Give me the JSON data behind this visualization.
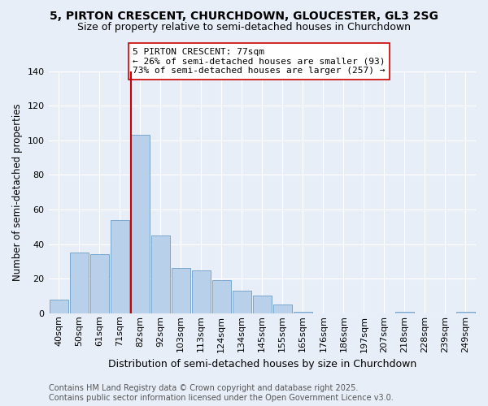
{
  "title1": "5, PIRTON CRESCENT, CHURCHDOWN, GLOUCESTER, GL3 2SG",
  "title2": "Size of property relative to semi-detached houses in Churchdown",
  "xlabel": "Distribution of semi-detached houses by size in Churchdown",
  "ylabel": "Number of semi-detached properties",
  "bar_labels": [
    "40sqm",
    "50sqm",
    "61sqm",
    "71sqm",
    "82sqm",
    "92sqm",
    "103sqm",
    "113sqm",
    "124sqm",
    "134sqm",
    "145sqm",
    "155sqm",
    "165sqm",
    "176sqm",
    "186sqm",
    "197sqm",
    "207sqm",
    "218sqm",
    "228sqm",
    "239sqm",
    "249sqm"
  ],
  "bar_values": [
    8,
    35,
    34,
    54,
    103,
    45,
    26,
    25,
    19,
    13,
    10,
    5,
    1,
    0,
    0,
    0,
    0,
    1,
    0,
    0,
    1
  ],
  "bar_color": "#b8d0ea",
  "bar_edge_color": "#6e9ec7",
  "background_color": "#e8eef8",
  "grid_color": "#ffffff",
  "vline_x_index": 4,
  "vline_color": "#cc0000",
  "annotation_title": "5 PIRTON CRESCENT: 77sqm",
  "annotation_line1": "← 26% of semi-detached houses are smaller (93)",
  "annotation_line2": "73% of semi-detached houses are larger (257) →",
  "annotation_box_color": "#ffffff",
  "annotation_box_edge": "#cc0000",
  "footer1": "Contains HM Land Registry data © Crown copyright and database right 2025.",
  "footer2": "Contains public sector information licensed under the Open Government Licence v3.0.",
  "ylim": [
    0,
    140
  ],
  "yticks": [
    0,
    20,
    40,
    60,
    80,
    100,
    120,
    140
  ],
  "title1_fontsize": 10,
  "title2_fontsize": 9,
  "xlabel_fontsize": 9,
  "ylabel_fontsize": 8.5,
  "tick_fontsize": 8,
  "annot_fontsize": 8,
  "footer_fontsize": 7
}
